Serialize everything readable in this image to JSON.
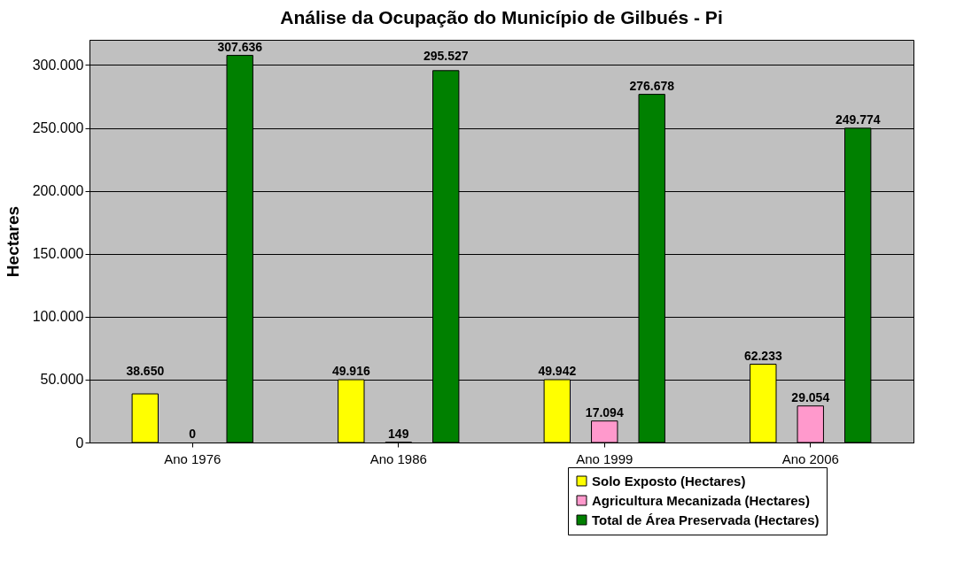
{
  "chart_data": {
    "type": "bar",
    "title": "Análise da Ocupação do Município de Gilbués - Pi",
    "ylabel": "Hectares",
    "categories": [
      "Ano 1976",
      "Ano 1986",
      "Ano 1999",
      "Ano 2006"
    ],
    "series": [
      {
        "name": "Solo Exposto (Hectares)",
        "color": "#ffff00",
        "values": [
          38650,
          49916,
          49942,
          62233
        ],
        "value_labels": [
          "38.650",
          "49.916",
          "49.942",
          "62.233"
        ]
      },
      {
        "name": "Agricultura Mecanizada (Hectares)",
        "color": "#ff99cc",
        "values": [
          0,
          149,
          17094,
          29054
        ],
        "value_labels": [
          "0",
          "149",
          "17.094",
          "29.054"
        ]
      },
      {
        "name": "Total de Área Preservada (Hectares)",
        "color": "#008000",
        "values": [
          307636,
          295527,
          276678,
          249774
        ],
        "value_labels": [
          "307.636",
          "295.527",
          "276.678",
          "249.774"
        ]
      }
    ],
    "ylim": [
      0,
      320000
    ],
    "yticks": [
      {
        "value": 0,
        "label": "0"
      },
      {
        "value": 50000,
        "label": "50.000"
      },
      {
        "value": 100000,
        "label": "100.000"
      },
      {
        "value": 150000,
        "label": "150.000"
      },
      {
        "value": 200000,
        "label": "200.000"
      },
      {
        "value": 250000,
        "label": "250.000"
      },
      {
        "value": 300000,
        "label": "300.000"
      }
    ],
    "grid": "y",
    "legend": "bottom right"
  }
}
